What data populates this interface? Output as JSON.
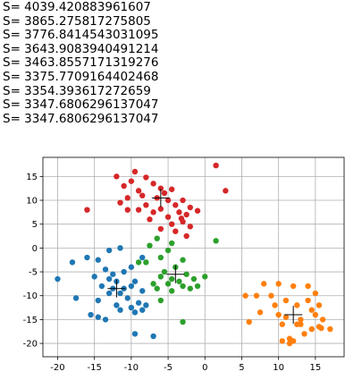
{
  "log_lines": [
    "S= 4039.420883961607",
    "S= 3865.275817275805",
    "S= 3776.8414543031095",
    "S= 3643.9083940491214",
    "S= 3463.8557171319276",
    "S= 3375.7709164402468",
    "S= 3354.393617272659",
    "S= 3347.6806296137047",
    "S= 3347.6806296137047"
  ],
  "chart_data": {
    "type": "scatter",
    "title": "",
    "xlabel": "",
    "ylabel": "",
    "xlim": [
      -22,
      18.9
    ],
    "ylim": [
      -22.8,
      19
    ],
    "grid": true,
    "legend": "none",
    "xticks": [
      -20,
      -15,
      -10,
      -5,
      0,
      5,
      10,
      15
    ],
    "yticks": [
      15,
      10,
      5,
      0,
      -5,
      -10,
      -15,
      -20
    ],
    "series": [
      {
        "color": "#d62728",
        "points": [
          [
            -9.5,
            16
          ],
          [
            -12,
            15
          ],
          [
            -8,
            14.8
          ],
          [
            -10,
            14
          ],
          [
            -7,
            13.5
          ],
          [
            -11,
            13
          ],
          [
            -6,
            12.5
          ],
          [
            -9,
            12
          ],
          [
            -4.5,
            12.3
          ],
          [
            -8.5,
            11
          ],
          [
            -5.5,
            11.5
          ],
          [
            -6.5,
            10.5
          ],
          [
            -10.5,
            10.5
          ],
          [
            -3,
            10
          ],
          [
            -11.5,
            9.5
          ],
          [
            -8,
            9
          ],
          [
            -4,
            9
          ],
          [
            -2,
            8.5
          ],
          [
            -6,
            8.2
          ],
          [
            -9,
            8
          ],
          [
            -10.5,
            8
          ],
          [
            -1,
            7.8
          ],
          [
            -3.5,
            7.5
          ],
          [
            -2.5,
            7
          ],
          [
            -5,
            6.5
          ],
          [
            -7.5,
            6
          ],
          [
            -3,
            5.5
          ],
          [
            -4.5,
            5
          ],
          [
            -2,
            4.5
          ],
          [
            -6,
            4
          ],
          [
            -4,
            3.5
          ],
          [
            -2.5,
            2.5
          ],
          [
            -16,
            8
          ],
          [
            1.5,
            17.3
          ],
          [
            2.8,
            12
          ],
          [
            -5,
            10
          ],
          [
            -7,
            7.5
          ],
          [
            -3.2,
            6.2
          ]
        ]
      },
      {
        "color": "#1f77b4",
        "points": [
          [
            -20,
            -6.5
          ],
          [
            -18,
            -3
          ],
          [
            -17.5,
            -10.5
          ],
          [
            -16,
            -2
          ],
          [
            -14.5,
            -2.5
          ],
          [
            -13.5,
            -4.5
          ],
          [
            -12.5,
            -5.5
          ],
          [
            -11,
            -5
          ],
          [
            -13,
            -6.5
          ],
          [
            -12,
            -7
          ],
          [
            -14,
            -8
          ],
          [
            -12.5,
            -8.5
          ],
          [
            -13,
            -9.5
          ],
          [
            -11.5,
            -9.5
          ],
          [
            -10,
            -8
          ],
          [
            -9.5,
            -7
          ],
          [
            -8.5,
            -9
          ],
          [
            -10.5,
            -10.5
          ],
          [
            -9,
            -11.5
          ],
          [
            -10,
            -12.5
          ],
          [
            -8,
            -12
          ],
          [
            -14.5,
            -11
          ],
          [
            -15.5,
            -14
          ],
          [
            -14.5,
            -14.5
          ],
          [
            -13.5,
            -15
          ],
          [
            -11.5,
            -13
          ],
          [
            -12,
            -12
          ],
          [
            -9.5,
            -13.5
          ],
          [
            -8.5,
            -13
          ],
          [
            -9.5,
            -18
          ],
          [
            -7,
            -18.5
          ],
          [
            -8.5,
            -2
          ],
          [
            -13,
            -0.5
          ],
          [
            -11.5,
            0
          ],
          [
            -10,
            -4
          ],
          [
            -15,
            -6
          ],
          [
            -11,
            -8.5
          ]
        ]
      },
      {
        "color": "#2ca02c",
        "points": [
          [
            -6.5,
            2
          ],
          [
            -4.5,
            1
          ],
          [
            -7.5,
            0.5
          ],
          [
            -5,
            -0.5
          ],
          [
            -6,
            -2
          ],
          [
            -3,
            -2.5
          ],
          [
            -8,
            -3
          ],
          [
            -4,
            -4
          ],
          [
            -5.5,
            -5
          ],
          [
            -2.5,
            -5.5
          ],
          [
            -6,
            -6
          ],
          [
            -4.5,
            -6.5
          ],
          [
            -3.5,
            -7
          ],
          [
            -1.5,
            -6.5
          ],
          [
            -5,
            -7.5
          ],
          [
            -7,
            -7.5
          ],
          [
            -3,
            -8
          ],
          [
            -6.5,
            -8.5
          ],
          [
            -2,
            -8.5
          ],
          [
            -4.5,
            -9
          ],
          [
            0,
            -6
          ],
          [
            -1,
            -8
          ],
          [
            -6,
            -11
          ],
          [
            -3,
            -15.5
          ],
          [
            1.5,
            1.5
          ],
          [
            -9,
            -3
          ]
        ]
      },
      {
        "color": "#ff7f0e",
        "points": [
          [
            8,
            -7.5
          ],
          [
            10,
            -7.5
          ],
          [
            12,
            -8
          ],
          [
            14,
            -8
          ],
          [
            15,
            -9.5
          ],
          [
            5.5,
            -10
          ],
          [
            7,
            -10
          ],
          [
            9,
            -10
          ],
          [
            11,
            -11
          ],
          [
            14,
            -11
          ],
          [
            9.5,
            -12
          ],
          [
            12.5,
            -12
          ],
          [
            15.5,
            -12
          ],
          [
            14.5,
            -13
          ],
          [
            15,
            -14
          ],
          [
            7.5,
            -13.5
          ],
          [
            10,
            -14
          ],
          [
            11,
            -14.5
          ],
          [
            13,
            -15
          ],
          [
            16,
            -15
          ],
          [
            10.5,
            -16
          ],
          [
            12.5,
            -16
          ],
          [
            14.5,
            -17
          ],
          [
            15.5,
            -16.5
          ],
          [
            17,
            -17
          ],
          [
            13.5,
            -18
          ],
          [
            11.5,
            -19
          ],
          [
            10.5,
            -19.5
          ],
          [
            11.5,
            -20
          ],
          [
            12,
            -19.5
          ],
          [
            6,
            -15.5
          ],
          [
            13,
            -16
          ],
          [
            15.8,
            -16.8
          ]
        ]
      }
    ],
    "centroids": [
      [
        -6,
        10.5
      ],
      [
        -12,
        -8.5
      ],
      [
        -4,
        -5.5
      ],
      [
        12,
        -14
      ]
    ]
  }
}
